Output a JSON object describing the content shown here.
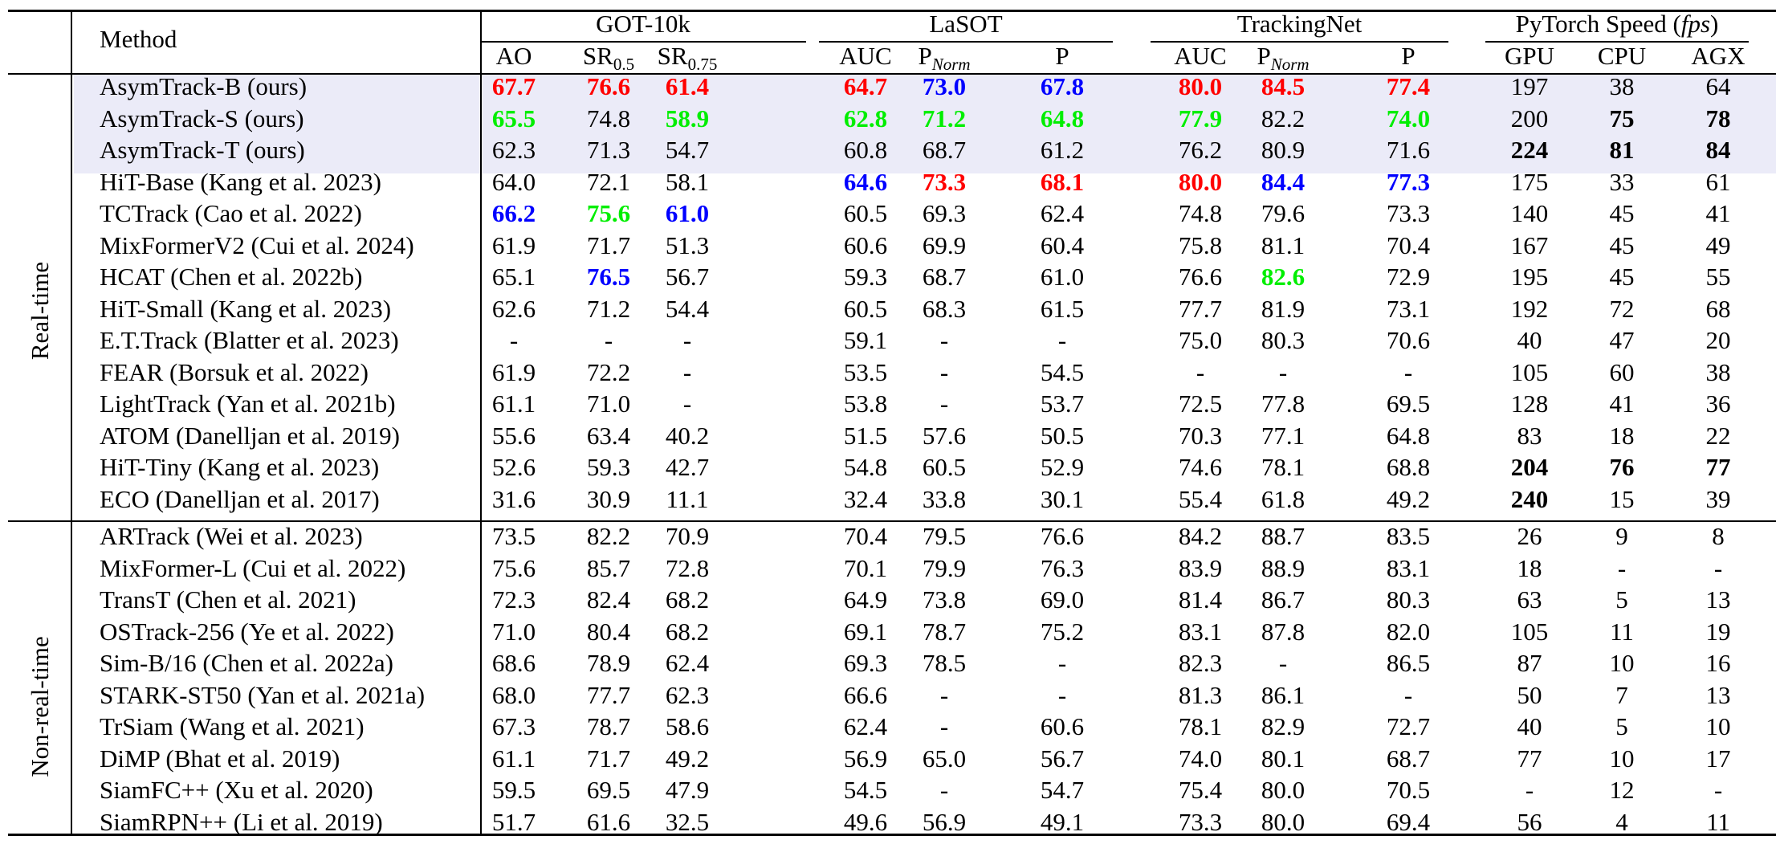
{
  "table": {
    "method_header": "Method",
    "groups": [
      {
        "name": "GOT-10k"
      },
      {
        "name": "LaSOT"
      },
      {
        "name": "TrackingNet"
      },
      {
        "name": "PyTorch Speed (",
        "name_italic": "fps",
        "name_end": ")"
      }
    ],
    "metric_headers": [
      {
        "text": "AO"
      },
      {
        "text": "SR",
        "sub": "0.5"
      },
      {
        "text": "SR",
        "sub": "0.75"
      },
      {
        "text": "AUC"
      },
      {
        "text": "P",
        "sub": "Norm",
        "sub_italic": true
      },
      {
        "text": "P"
      },
      {
        "text": "AUC"
      },
      {
        "text": "P",
        "sub": "Norm",
        "sub_italic": true
      },
      {
        "text": "P"
      },
      {
        "text": "GPU"
      },
      {
        "text": "CPU"
      },
      {
        "text": "AGX"
      }
    ],
    "section_labels": {
      "realtime": "Real-time",
      "nonrealtime": "Non-real-time"
    },
    "colors": {
      "red": "#ff0000",
      "blue": "#0000ff",
      "green": "#00ee00",
      "black": "#000000",
      "highlight": "#ebebf8"
    },
    "rows": [
      {
        "method": "AsymTrack-B (ours)",
        "highlight": true,
        "values": [
          {
            "v": "67.7",
            "c": "red",
            "b": 1
          },
          {
            "v": "76.6",
            "c": "red",
            "b": 1
          },
          {
            "v": "61.4",
            "c": "red",
            "b": 1
          },
          {
            "v": "64.7",
            "c": "red",
            "b": 1
          },
          {
            "v": "73.0",
            "c": "blue",
            "b": 1
          },
          {
            "v": "67.8",
            "c": "blue",
            "b": 1
          },
          {
            "v": "80.0",
            "c": "red",
            "b": 1
          },
          {
            "v": "84.5",
            "c": "red",
            "b": 1
          },
          {
            "v": "77.4",
            "c": "red",
            "b": 1
          },
          {
            "v": "197"
          },
          {
            "v": "38"
          },
          {
            "v": "64"
          }
        ]
      },
      {
        "method": "AsymTrack-S (ours)",
        "highlight": true,
        "values": [
          {
            "v": "65.5",
            "c": "green",
            "b": 1
          },
          {
            "v": "74.8"
          },
          {
            "v": "58.9",
            "c": "green",
            "b": 1
          },
          {
            "v": "62.8",
            "c": "green",
            "b": 1
          },
          {
            "v": "71.2",
            "c": "green",
            "b": 1
          },
          {
            "v": "64.8",
            "c": "green",
            "b": 1
          },
          {
            "v": "77.9",
            "c": "green",
            "b": 1
          },
          {
            "v": "82.2"
          },
          {
            "v": "74.0",
            "c": "green",
            "b": 1
          },
          {
            "v": "200"
          },
          {
            "v": "75",
            "b": 1
          },
          {
            "v": "78",
            "b": 1
          }
        ]
      },
      {
        "method": "AsymTrack-T (ours)",
        "highlight": true,
        "values": [
          {
            "v": "62.3"
          },
          {
            "v": "71.3"
          },
          {
            "v": "54.7"
          },
          {
            "v": "60.8"
          },
          {
            "v": "68.7"
          },
          {
            "v": "61.2"
          },
          {
            "v": "76.2"
          },
          {
            "v": "80.9"
          },
          {
            "v": "71.6"
          },
          {
            "v": "224",
            "b": 1
          },
          {
            "v": "81",
            "b": 1
          },
          {
            "v": "84",
            "b": 1
          }
        ]
      },
      {
        "method": "HiT-Base (Kang et al. 2023)",
        "values": [
          {
            "v": "64.0"
          },
          {
            "v": "72.1"
          },
          {
            "v": "58.1"
          },
          {
            "v": "64.6",
            "c": "blue",
            "b": 1
          },
          {
            "v": "73.3",
            "c": "red",
            "b": 1
          },
          {
            "v": "68.1",
            "c": "red",
            "b": 1
          },
          {
            "v": "80.0",
            "c": "red",
            "b": 1
          },
          {
            "v": "84.4",
            "c": "blue",
            "b": 1
          },
          {
            "v": "77.3",
            "c": "blue",
            "b": 1
          },
          {
            "v": "175"
          },
          {
            "v": "33"
          },
          {
            "v": "61"
          }
        ]
      },
      {
        "method": "TCTrack (Cao et al. 2022)",
        "values": [
          {
            "v": "66.2",
            "c": "blue",
            "b": 1
          },
          {
            "v": "75.6",
            "c": "green",
            "b": 1
          },
          {
            "v": "61.0",
            "c": "blue",
            "b": 1
          },
          {
            "v": "60.5"
          },
          {
            "v": "69.3"
          },
          {
            "v": "62.4"
          },
          {
            "v": "74.8"
          },
          {
            "v": "79.6"
          },
          {
            "v": "73.3"
          },
          {
            "v": "140"
          },
          {
            "v": "45"
          },
          {
            "v": "41"
          }
        ]
      },
      {
        "method": "MixFormerV2 (Cui et al. 2024)",
        "values": [
          {
            "v": "61.9"
          },
          {
            "v": "71.7"
          },
          {
            "v": "51.3"
          },
          {
            "v": "60.6"
          },
          {
            "v": "69.9"
          },
          {
            "v": "60.4"
          },
          {
            "v": "75.8"
          },
          {
            "v": "81.1"
          },
          {
            "v": "70.4"
          },
          {
            "v": "167"
          },
          {
            "v": "45"
          },
          {
            "v": "49"
          }
        ]
      },
      {
        "method": "HCAT (Chen et al. 2022b)",
        "values": [
          {
            "v": "65.1"
          },
          {
            "v": "76.5",
            "c": "blue",
            "b": 1
          },
          {
            "v": "56.7"
          },
          {
            "v": "59.3"
          },
          {
            "v": "68.7"
          },
          {
            "v": "61.0"
          },
          {
            "v": "76.6"
          },
          {
            "v": "82.6",
            "c": "green",
            "b": 1
          },
          {
            "v": "72.9"
          },
          {
            "v": "195"
          },
          {
            "v": "45"
          },
          {
            "v": "55"
          }
        ]
      },
      {
        "method": "HiT-Small (Kang et al. 2023)",
        "values": [
          {
            "v": "62.6"
          },
          {
            "v": "71.2"
          },
          {
            "v": "54.4"
          },
          {
            "v": "60.5"
          },
          {
            "v": "68.3"
          },
          {
            "v": "61.5"
          },
          {
            "v": "77.7"
          },
          {
            "v": "81.9"
          },
          {
            "v": "73.1"
          },
          {
            "v": "192"
          },
          {
            "v": "72"
          },
          {
            "v": "68"
          }
        ]
      },
      {
        "method": "E.T.Track (Blatter et al. 2023)",
        "values": [
          {
            "v": "-"
          },
          {
            "v": "-"
          },
          {
            "v": "-"
          },
          {
            "v": "59.1"
          },
          {
            "v": "-"
          },
          {
            "v": "-"
          },
          {
            "v": "75.0"
          },
          {
            "v": "80.3"
          },
          {
            "v": "70.6"
          },
          {
            "v": "40"
          },
          {
            "v": "47"
          },
          {
            "v": "20"
          }
        ]
      },
      {
        "method": "FEAR (Borsuk et al. 2022)",
        "values": [
          {
            "v": "61.9"
          },
          {
            "v": "72.2"
          },
          {
            "v": "-"
          },
          {
            "v": "53.5"
          },
          {
            "v": "-"
          },
          {
            "v": "54.5"
          },
          {
            "v": "-"
          },
          {
            "v": "-"
          },
          {
            "v": "-"
          },
          {
            "v": "105"
          },
          {
            "v": "60"
          },
          {
            "v": "38"
          }
        ]
      },
      {
        "method": "LightTrack (Yan et al. 2021b)",
        "values": [
          {
            "v": "61.1"
          },
          {
            "v": "71.0"
          },
          {
            "v": "-"
          },
          {
            "v": "53.8"
          },
          {
            "v": "-"
          },
          {
            "v": "53.7"
          },
          {
            "v": "72.5"
          },
          {
            "v": "77.8"
          },
          {
            "v": "69.5"
          },
          {
            "v": "128"
          },
          {
            "v": "41"
          },
          {
            "v": "36"
          }
        ]
      },
      {
        "method": "ATOM (Danelljan et al. 2019)",
        "values": [
          {
            "v": "55.6"
          },
          {
            "v": "63.4"
          },
          {
            "v": "40.2"
          },
          {
            "v": "51.5"
          },
          {
            "v": "57.6"
          },
          {
            "v": "50.5"
          },
          {
            "v": "70.3"
          },
          {
            "v": "77.1"
          },
          {
            "v": "64.8"
          },
          {
            "v": "83"
          },
          {
            "v": "18"
          },
          {
            "v": "22"
          }
        ]
      },
      {
        "method": "HiT-Tiny (Kang et al. 2023)",
        "values": [
          {
            "v": "52.6"
          },
          {
            "v": "59.3"
          },
          {
            "v": "42.7"
          },
          {
            "v": "54.8"
          },
          {
            "v": "60.5"
          },
          {
            "v": "52.9"
          },
          {
            "v": "74.6"
          },
          {
            "v": "78.1"
          },
          {
            "v": "68.8"
          },
          {
            "v": "204",
            "b": 1
          },
          {
            "v": "76",
            "b": 1
          },
          {
            "v": "77",
            "b": 1
          }
        ]
      },
      {
        "method": "ECO (Danelljan et al. 2017)",
        "values": [
          {
            "v": "31.6"
          },
          {
            "v": "30.9"
          },
          {
            "v": "11.1"
          },
          {
            "v": "32.4"
          },
          {
            "v": "33.8"
          },
          {
            "v": "30.1"
          },
          {
            "v": "55.4"
          },
          {
            "v": "61.8"
          },
          {
            "v": "49.2"
          },
          {
            "v": "240",
            "b": 1
          },
          {
            "v": "15"
          },
          {
            "v": "39"
          }
        ]
      },
      {
        "method": "ARTrack (Wei et al. 2023)",
        "values": [
          {
            "v": "73.5"
          },
          {
            "v": "82.2"
          },
          {
            "v": "70.9"
          },
          {
            "v": "70.4"
          },
          {
            "v": "79.5"
          },
          {
            "v": "76.6"
          },
          {
            "v": "84.2"
          },
          {
            "v": "88.7"
          },
          {
            "v": "83.5"
          },
          {
            "v": "26"
          },
          {
            "v": "9"
          },
          {
            "v": "8"
          }
        ]
      },
      {
        "method": "MixFormer-L (Cui et al. 2022)",
        "values": [
          {
            "v": "75.6"
          },
          {
            "v": "85.7"
          },
          {
            "v": "72.8"
          },
          {
            "v": "70.1"
          },
          {
            "v": "79.9"
          },
          {
            "v": "76.3"
          },
          {
            "v": "83.9"
          },
          {
            "v": "88.9"
          },
          {
            "v": "83.1"
          },
          {
            "v": "18"
          },
          {
            "v": "-"
          },
          {
            "v": "-"
          }
        ]
      },
      {
        "method": "TransT (Chen et al. 2021)",
        "values": [
          {
            "v": "72.3"
          },
          {
            "v": "82.4"
          },
          {
            "v": "68.2"
          },
          {
            "v": "64.9"
          },
          {
            "v": "73.8"
          },
          {
            "v": "69.0"
          },
          {
            "v": "81.4"
          },
          {
            "v": "86.7"
          },
          {
            "v": "80.3"
          },
          {
            "v": "63"
          },
          {
            "v": "5"
          },
          {
            "v": "13"
          }
        ]
      },
      {
        "method": "OSTrack-256 (Ye et al. 2022)",
        "values": [
          {
            "v": "71.0"
          },
          {
            "v": "80.4"
          },
          {
            "v": "68.2"
          },
          {
            "v": "69.1"
          },
          {
            "v": "78.7"
          },
          {
            "v": "75.2"
          },
          {
            "v": "83.1"
          },
          {
            "v": "87.8"
          },
          {
            "v": "82.0"
          },
          {
            "v": "105"
          },
          {
            "v": "11"
          },
          {
            "v": "19"
          }
        ]
      },
      {
        "method": "Sim-B/16 (Chen et al. 2022a)",
        "values": [
          {
            "v": "68.6"
          },
          {
            "v": "78.9"
          },
          {
            "v": "62.4"
          },
          {
            "v": "69.3"
          },
          {
            "v": "78.5"
          },
          {
            "v": "-"
          },
          {
            "v": "82.3"
          },
          {
            "v": "-"
          },
          {
            "v": "86.5"
          },
          {
            "v": "87"
          },
          {
            "v": "10"
          },
          {
            "v": "16"
          }
        ]
      },
      {
        "method": "STARK-ST50 (Yan et al. 2021a)",
        "values": [
          {
            "v": "68.0"
          },
          {
            "v": "77.7"
          },
          {
            "v": "62.3"
          },
          {
            "v": "66.6"
          },
          {
            "v": "-"
          },
          {
            "v": "-"
          },
          {
            "v": "81.3"
          },
          {
            "v": "86.1"
          },
          {
            "v": "-"
          },
          {
            "v": "50"
          },
          {
            "v": "7"
          },
          {
            "v": "13"
          }
        ]
      },
      {
        "method": "TrSiam (Wang et al. 2021)",
        "values": [
          {
            "v": "67.3"
          },
          {
            "v": "78.7"
          },
          {
            "v": "58.6"
          },
          {
            "v": "62.4"
          },
          {
            "v": "-"
          },
          {
            "v": "60.6"
          },
          {
            "v": "78.1"
          },
          {
            "v": "82.9"
          },
          {
            "v": "72.7"
          },
          {
            "v": "40"
          },
          {
            "v": "5"
          },
          {
            "v": "10"
          }
        ]
      },
      {
        "method": "DiMP (Bhat et al. 2019)",
        "values": [
          {
            "v": "61.1"
          },
          {
            "v": "71.7"
          },
          {
            "v": "49.2"
          },
          {
            "v": "56.9"
          },
          {
            "v": "65.0"
          },
          {
            "v": "56.7"
          },
          {
            "v": "74.0"
          },
          {
            "v": "80.1"
          },
          {
            "v": "68.7"
          },
          {
            "v": "77"
          },
          {
            "v": "10"
          },
          {
            "v": "17"
          }
        ]
      },
      {
        "method": "SiamFC++ (Xu et al. 2020)",
        "values": [
          {
            "v": "59.5"
          },
          {
            "v": "69.5"
          },
          {
            "v": "47.9"
          },
          {
            "v": "54.5"
          },
          {
            "v": "-"
          },
          {
            "v": "54.7"
          },
          {
            "v": "75.4"
          },
          {
            "v": "80.0"
          },
          {
            "v": "70.5"
          },
          {
            "v": "-"
          },
          {
            "v": "12"
          },
          {
            "v": "-"
          }
        ]
      },
      {
        "method": "SiamRPN++ (Li et al. 2019)",
        "values": [
          {
            "v": "51.7"
          },
          {
            "v": "61.6"
          },
          {
            "v": "32.5"
          },
          {
            "v": "49.6"
          },
          {
            "v": "56.9"
          },
          {
            "v": "49.1"
          },
          {
            "v": "73.3"
          },
          {
            "v": "80.0"
          },
          {
            "v": "69.4"
          },
          {
            "v": "56"
          },
          {
            "v": "4"
          },
          {
            "v": "11"
          }
        ]
      }
    ]
  }
}
